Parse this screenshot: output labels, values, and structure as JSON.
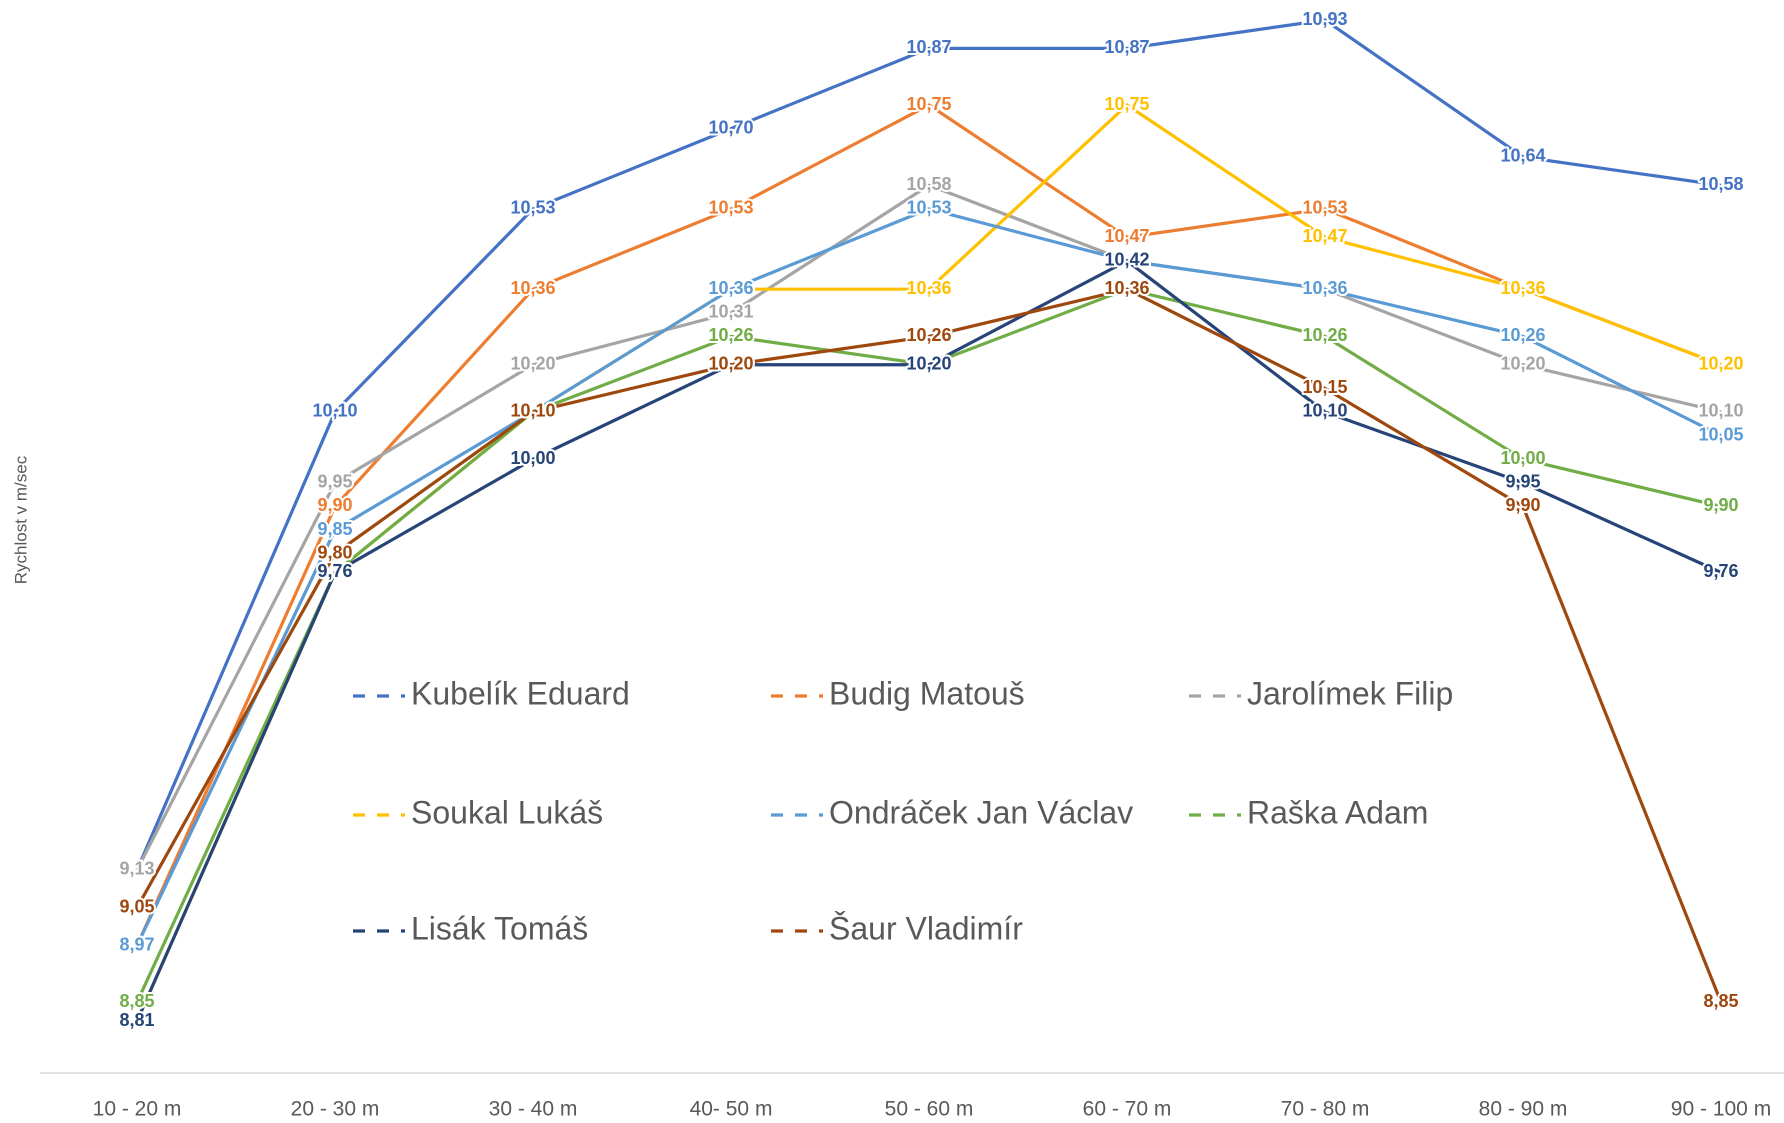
{
  "chart_data": {
    "type": "line",
    "y_label": "Rychlost v m/sec",
    "categories": [
      "10 - 20 m",
      "20 - 30 m",
      "30 - 40 m",
      "40- 50 m",
      "50 - 60 m",
      "60 - 70 m",
      "70 - 80 m",
      "80 - 90 m",
      "90 - 100 m"
    ],
    "ylim": [
      8.7,
      11.0
    ],
    "series": [
      {
        "name": "Kubelík Eduard",
        "color": "#4472c4",
        "values": [
          9.13,
          10.1,
          10.53,
          10.7,
          10.87,
          10.87,
          10.93,
          10.64,
          10.58
        ],
        "value_labels": [
          "9,13",
          "10,10",
          "10,53",
          "10,70",
          "10,87",
          "10,87",
          "10,93",
          "10,64",
          "10,58"
        ]
      },
      {
        "name": "Budig Matouš",
        "color": "#ed7d31",
        "values": [
          8.97,
          9.9,
          10.36,
          10.53,
          10.75,
          10.47,
          10.53,
          10.36,
          10.2
        ],
        "value_labels": [
          "8,97",
          "9,90",
          "10,36",
          "10,53",
          "10,75",
          "10,47",
          "10,53",
          "10,36",
          "10,20"
        ]
      },
      {
        "name": "Jarolímek Filip",
        "color": "#a5a5a5",
        "values": [
          9.13,
          9.95,
          10.2,
          10.31,
          10.58,
          10.42,
          10.36,
          10.2,
          10.1
        ],
        "value_labels": [
          "9,13",
          "9,95",
          "10,20",
          "10,31",
          "10,58",
          "10,42",
          "10,36",
          "10,20",
          "10,10"
        ]
      },
      {
        "name": "Soukal Lukáš",
        "color": "#ffc000",
        "values": [
          8.81,
          9.76,
          10.1,
          10.36,
          10.36,
          10.75,
          10.47,
          10.36,
          10.2
        ],
        "value_labels": [
          "8,81",
          "9,76",
          "10,10",
          "10,36",
          "10,36",
          "10,75",
          "10,47",
          "10,36",
          "10,20"
        ]
      },
      {
        "name": "Ondráček Jan Václav",
        "color": "#5b9bd5",
        "values": [
          8.97,
          9.85,
          10.1,
          10.36,
          10.53,
          10.42,
          10.36,
          10.26,
          10.05
        ],
        "value_labels": [
          "8,97",
          "9,85",
          "10,10",
          "10,36",
          "10,53",
          "10,42",
          "10,36",
          "10,26",
          "10,05"
        ]
      },
      {
        "name": "Raška Adam",
        "color": "#70ad47",
        "values": [
          8.85,
          9.76,
          10.1,
          10.26,
          10.2,
          10.36,
          10.26,
          10.0,
          9.9
        ],
        "value_labels": [
          "8,85",
          "9,76",
          "10,10",
          "10,26",
          "10,20",
          "10,36",
          "10,26",
          "10,00",
          "9,90"
        ]
      },
      {
        "name": "Lisák Tomáš",
        "color": "#264478",
        "values": [
          8.81,
          9.76,
          10.0,
          10.2,
          10.2,
          10.42,
          10.1,
          9.95,
          9.76
        ],
        "value_labels": [
          "8,81",
          "9,76",
          "10,00",
          "10,20",
          "10,20",
          "10,42",
          "10,10",
          "9,95",
          "9,76"
        ]
      },
      {
        "name": "Šaur Vladimír",
        "color": "#9e480e",
        "values": [
          9.05,
          9.8,
          10.1,
          10.2,
          10.26,
          10.36,
          10.15,
          9.9,
          8.85
        ],
        "value_labels": [
          "9,05",
          "9,80",
          "10,10",
          "10,20",
          "10,26",
          "10,36",
          "10,15",
          "9,90",
          "8,85"
        ]
      }
    ]
  }
}
